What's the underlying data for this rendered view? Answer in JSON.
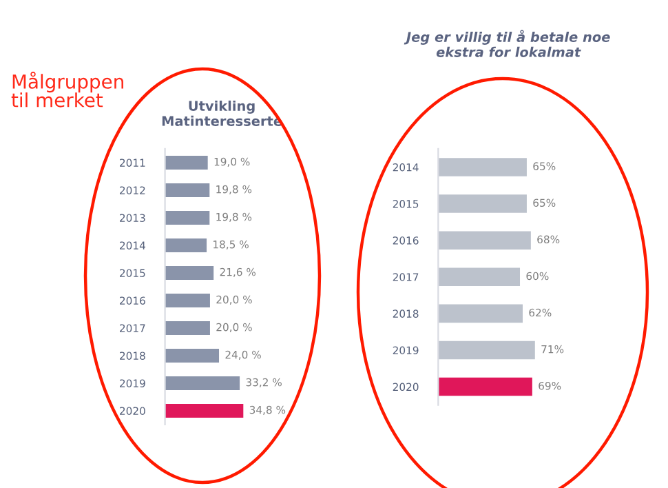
{
  "chart_data": [
    {
      "type": "bar",
      "orientation": "horizontal",
      "title": "Utvikling\nMatinteresserte",
      "categories": [
        "2011",
        "2012",
        "2013",
        "2014",
        "2015",
        "2016",
        "2017",
        "2018",
        "2019",
        "2020"
      ],
      "values": [
        19.0,
        19.8,
        19.8,
        18.5,
        21.6,
        20.0,
        20.0,
        24.0,
        33.2,
        34.8
      ],
      "value_labels": [
        "19,0 %",
        "19,8 %",
        "19,8 %",
        "18,5 %",
        "21,6 %",
        "20,0 %",
        "20,0 %",
        "24,0 %",
        "33,2 %",
        "34,8 %"
      ],
      "colors": [
        "#8a94aa",
        "#8a94aa",
        "#8a94aa",
        "#8a94aa",
        "#8a94aa",
        "#8a94aa",
        "#8a94aa",
        "#8a94aa",
        "#8a94aa",
        "#e0175a"
      ],
      "tick_labels": "y",
      "grid": false,
      "legend": false,
      "annotations": [
        "Målgruppen\ntil merket"
      ]
    },
    {
      "type": "bar",
      "orientation": "horizontal",
      "title": "Jeg er villig til å betale noe\nekstra for lokalmat",
      "categories": [
        "2014",
        "2015",
        "2016",
        "2017",
        "2018",
        "2019",
        "2020"
      ],
      "values": [
        65,
        65,
        68,
        60,
        62,
        71,
        69
      ],
      "value_labels": [
        "65%",
        "65%",
        "68%",
        "60%",
        "62%",
        "71%",
        "69%"
      ],
      "colors": [
        "#bcc2cc",
        "#bcc2cc",
        "#bcc2cc",
        "#bcc2cc",
        "#bcc2cc",
        "#bcc2cc",
        "#e0175a"
      ],
      "tick_labels": "y",
      "grid": false,
      "legend": false
    }
  ]
}
